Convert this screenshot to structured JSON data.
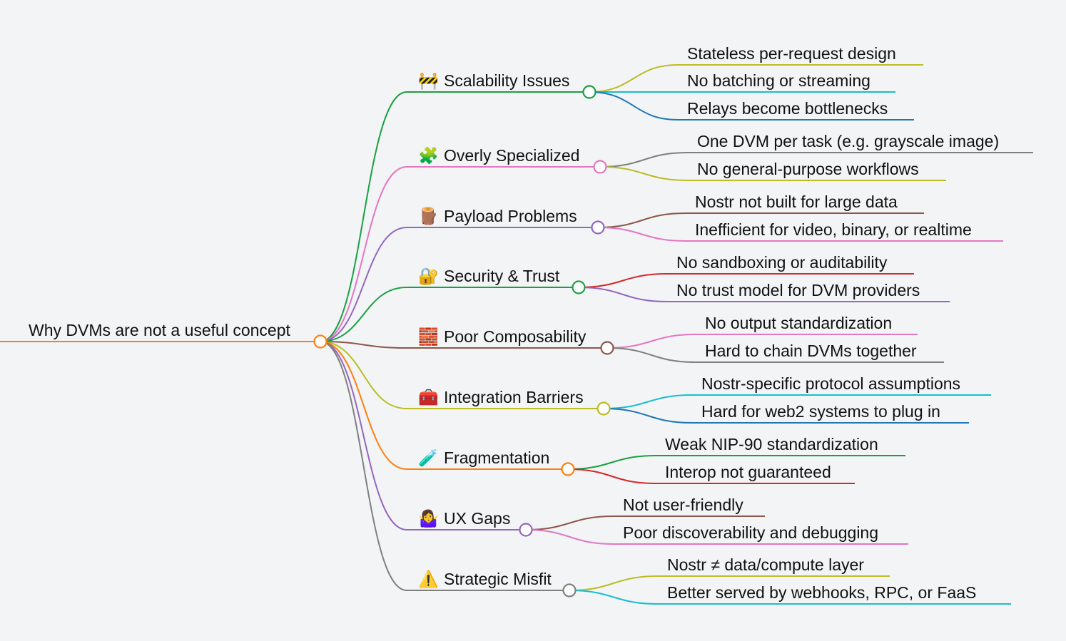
{
  "root": {
    "label": "Why DVMs are not a useful concept",
    "color": "#ff7f0e"
  },
  "branches": [
    {
      "icon": "🚧",
      "icon_name": "construction-icon",
      "label": "Scalability Issues",
      "color": "#1aa043",
      "children": [
        {
          "label": "Stateless per-request design",
          "color": "#bcbd22"
        },
        {
          "label": "No batching or streaming",
          "color": "#17becf"
        },
        {
          "label": "Relays become bottlenecks",
          "color": "#1f77b4"
        }
      ]
    },
    {
      "icon": "🧩",
      "icon_name": "puzzle-piece-icon",
      "label": "Overly Specialized",
      "color": "#e377c2",
      "children": [
        {
          "label": "One DVM per task (e.g. grayscale image)",
          "color": "#7f7f7f"
        },
        {
          "label": "No general-purpose workflows",
          "color": "#bcbd22"
        }
      ]
    },
    {
      "icon": "🪵",
      "icon_name": "wood-log-icon",
      "label": "Payload Problems",
      "color": "#9467bd",
      "children": [
        {
          "label": "Nostr not built for large data",
          "color": "#8c564b"
        },
        {
          "label": "Inefficient for video, binary, or realtime",
          "color": "#e377c2"
        }
      ]
    },
    {
      "icon": "🔐",
      "icon_name": "lock-with-key-icon",
      "label": "Security & Trust",
      "color": "#1aa043",
      "children": [
        {
          "label": "No sandboxing or auditability",
          "color": "#d62728"
        },
        {
          "label": "No trust model for DVM providers",
          "color": "#9467bd"
        }
      ]
    },
    {
      "icon": "🧱",
      "icon_name": "brick-icon",
      "label": "Poor Composability",
      "color": "#8c564b",
      "children": [
        {
          "label": "No output standardization",
          "color": "#e377c2"
        },
        {
          "label": "Hard to chain DVMs together",
          "color": "#7f7f7f"
        }
      ]
    },
    {
      "icon": "🧰",
      "icon_name": "toolbox-icon",
      "label": "Integration Barriers",
      "color": "#bcbd22",
      "children": [
        {
          "label": "Nostr-specific protocol assumptions",
          "color": "#17becf"
        },
        {
          "label": "Hard for web2 systems to plug in",
          "color": "#1f77b4"
        }
      ]
    },
    {
      "icon": "🧪",
      "icon_name": "test-tube-icon",
      "label": "Fragmentation",
      "color": "#ff7f0e",
      "children": [
        {
          "label": "Weak NIP-90 standardization",
          "color": "#1aa043"
        },
        {
          "label": "Interop not guaranteed",
          "color": "#d62728"
        }
      ]
    },
    {
      "icon": "🤷‍♀️",
      "icon_name": "shrug-icon",
      "label": "UX Gaps",
      "color": "#9467bd",
      "children": [
        {
          "label": "Not user-friendly",
          "color": "#8c564b"
        },
        {
          "label": "Poor discoverability and debugging",
          "color": "#e377c2"
        }
      ]
    },
    {
      "icon": "⚠️",
      "icon_name": "warning-icon",
      "label": "Strategic Misfit",
      "color": "#7f7f7f",
      "children": [
        {
          "label": "Nostr ≠ data/compute layer",
          "color": "#bcbd22"
        },
        {
          "label": "Better served by webhooks, RPC, or FaaS",
          "color": "#17becf"
        }
      ]
    }
  ]
}
